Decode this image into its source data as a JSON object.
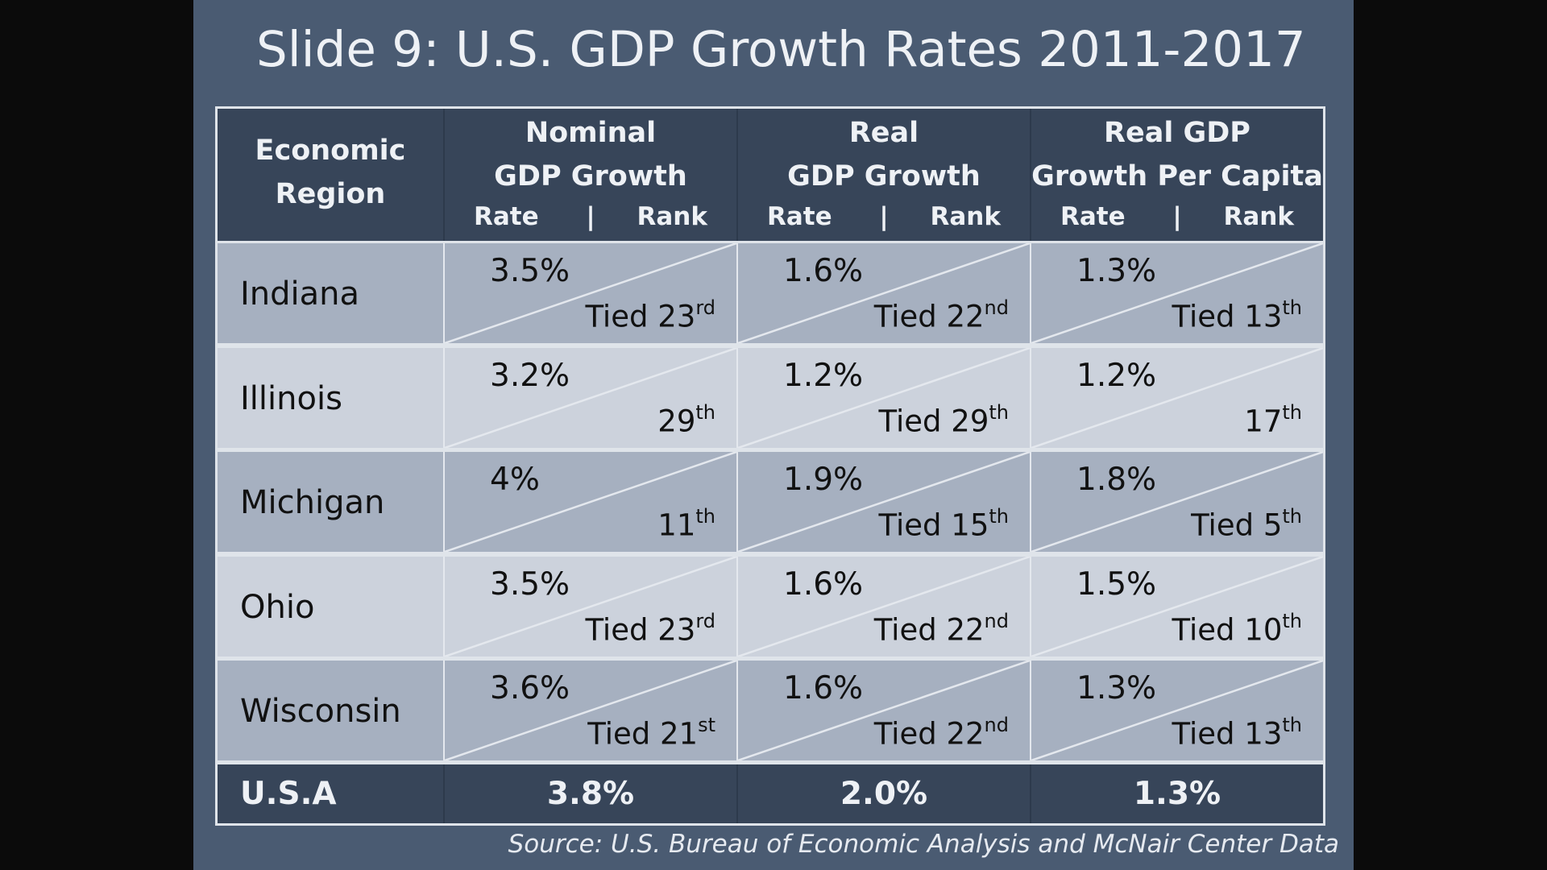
{
  "title": "Slide 9: U.S. GDP Growth Rates 2011-2017",
  "header": {
    "region_line1": "Economic",
    "region_line2": "Region",
    "columns": [
      {
        "line1": "Nominal",
        "line2": "GDP Growth",
        "rate": "Rate",
        "sep": "|",
        "rank": "Rank"
      },
      {
        "line1": "Real",
        "line2": "GDP Growth",
        "rate": "Rate",
        "sep": "|",
        "rank": "Rank"
      },
      {
        "line1": "Real GDP",
        "line2": "Growth Per Capita",
        "rate": "Rate",
        "sep": "|",
        "rank": "Rank"
      }
    ]
  },
  "rows": [
    {
      "region": "Indiana",
      "cells": [
        {
          "rate": "3.5%",
          "rank": "Tied 23",
          "suffix": "rd"
        },
        {
          "rate": "1.6%",
          "rank": "Tied 22",
          "suffix": "nd"
        },
        {
          "rate": "1.3%",
          "rank": "Tied 13",
          "suffix": "th"
        }
      ]
    },
    {
      "region": "Illinois",
      "cells": [
        {
          "rate": "3.2%",
          "rank": "29",
          "suffix": "th"
        },
        {
          "rate": "1.2%",
          "rank": "Tied 29",
          "suffix": "th"
        },
        {
          "rate": "1.2%",
          "rank": "17",
          "suffix": "th"
        }
      ]
    },
    {
      "region": "Michigan",
      "cells": [
        {
          "rate": "4%",
          "rank": "11",
          "suffix": "th"
        },
        {
          "rate": "1.9%",
          "rank": "Tied 15",
          "suffix": "th"
        },
        {
          "rate": "1.8%",
          "rank": "Tied 5",
          "suffix": "th"
        }
      ]
    },
    {
      "region": "Ohio",
      "cells": [
        {
          "rate": "3.5%",
          "rank": "Tied 23",
          "suffix": "rd"
        },
        {
          "rate": "1.6%",
          "rank": "Tied 22",
          "suffix": "nd"
        },
        {
          "rate": "1.5%",
          "rank": "Tied 10",
          "suffix": "th"
        }
      ]
    },
    {
      "region": "Wisconsin",
      "cells": [
        {
          "rate": "3.6%",
          "rank": "Tied 21",
          "suffix": "st"
        },
        {
          "rate": "1.6%",
          "rank": "Tied 22",
          "suffix": "nd"
        },
        {
          "rate": "1.3%",
          "rank": "Tied 13",
          "suffix": "th"
        }
      ]
    }
  ],
  "usa": {
    "label": "U.S.A",
    "values": [
      "3.8%",
      "2.0%",
      "1.3%"
    ]
  },
  "source": "Source: U.S. Bureau of Economic Analysis and McNair Center Data",
  "colors": {
    "slide_bg": "#4a5b72",
    "header_bg": "#374559",
    "row_dark": "#a6b0c0",
    "row_light": "#ccd2dc"
  }
}
